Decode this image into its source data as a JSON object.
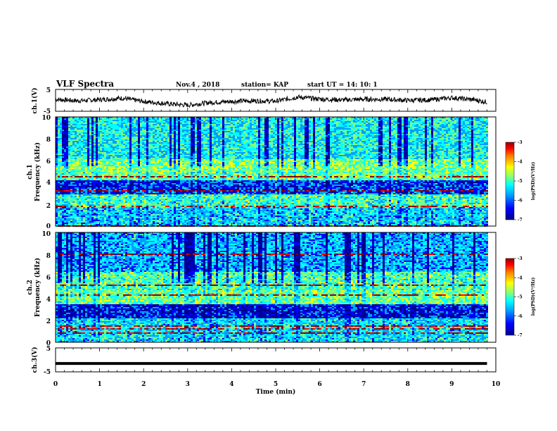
{
  "header": {
    "title": "VLF Spectra",
    "date": "Nov.4 , 2018",
    "station": "station= KAP",
    "start": "start UT = 14: 10: 1"
  },
  "chart_data": [
    {
      "type": "line",
      "panel": "ch1-waveform",
      "ylabel": "ch.1(V)",
      "ylim": [
        -5,
        5
      ],
      "yticks": [
        "5",
        "-5"
      ],
      "x": [
        0.0,
        0.5,
        1.0,
        1.5,
        2.0,
        2.5,
        3.0,
        3.5,
        4.0,
        4.5,
        5.0,
        5.5,
        6.0,
        6.5,
        7.0,
        7.5,
        8.0,
        8.5,
        9.0,
        9.5,
        9.8
      ],
      "values": [
        0.5,
        -0.2,
        0.3,
        1.0,
        -0.5,
        -1.5,
        -2.2,
        -1.0,
        -0.5,
        -0.2,
        -0.4,
        1.5,
        0.6,
        0.2,
        0.5,
        0.5,
        0.0,
        0.2,
        1.2,
        0.3,
        -0.8
      ],
      "color": "#000000"
    },
    {
      "type": "heatmap",
      "panel": "ch1-spectrogram",
      "ylabel": "ch.1\nFrequency (kHz)",
      "ylim": [
        0,
        10
      ],
      "yticks": [
        "0",
        "2",
        "4",
        "6",
        "8",
        "10"
      ],
      "colorbar": {
        "label": "log(PSD)(V²/Hz)",
        "ticks": [
          "-3",
          "-4",
          "-5",
          "-6",
          "-7"
        ],
        "range": [
          -7,
          -3
        ]
      }
    },
    {
      "type": "heatmap",
      "panel": "ch2-spectrogram",
      "ylabel": "ch.2\nFrequency (kHz)",
      "ylim": [
        0,
        10
      ],
      "yticks": [
        "0",
        "2",
        "4",
        "6",
        "8",
        "10"
      ],
      "colorbar": {
        "label": "log(PSD)(V²/Hz)",
        "ticks": [
          "-3",
          "-4",
          "-5",
          "-6",
          "-7"
        ],
        "range": [
          -7,
          -3
        ]
      }
    },
    {
      "type": "line",
      "panel": "ch3-waveform",
      "ylabel": "ch.3(V)",
      "ylim": [
        -5,
        5
      ],
      "yticks": [
        "5",
        "-5"
      ],
      "x": [
        0,
        9.8
      ],
      "values": [
        -1.5,
        -1.5
      ],
      "color": "#000000"
    }
  ],
  "xaxis": {
    "label": "Time (min)",
    "ticks": [
      "0",
      "1",
      "2",
      "3",
      "4",
      "5",
      "6",
      "7",
      "8",
      "9",
      "10"
    ],
    "range": [
      0,
      10
    ]
  },
  "palette": [
    "#00008f",
    "#0000ff",
    "#00a0ff",
    "#00ffff",
    "#7fff7f",
    "#ffff00",
    "#ff8000",
    "#ff0000",
    "#8b0000"
  ]
}
